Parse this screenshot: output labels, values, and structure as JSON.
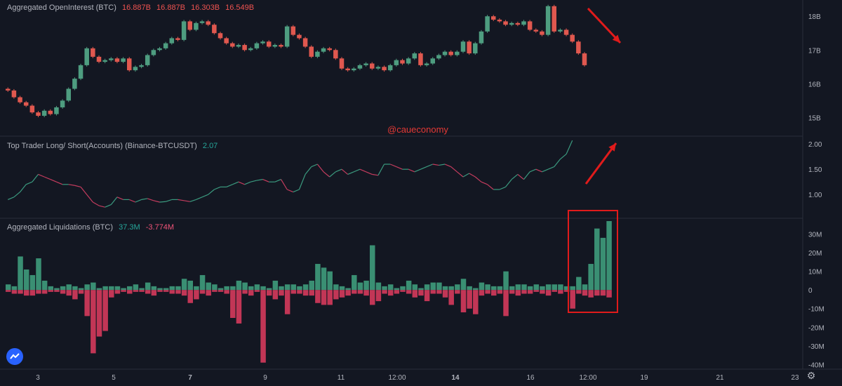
{
  "colors": {
    "background": "#131722",
    "up": "#4e9d80",
    "down": "#e0584f",
    "line_up": "#3b9a7f",
    "line_down": "#c43c5e",
    "liq_long": "#3a8f73",
    "liq_short": "#c23656",
    "annotation": "#e01b1b",
    "grid": "#2a2e39",
    "text": "#b2b5be"
  },
  "watermark": "@caueconomy",
  "logo_icon": "tradingview-cloud-icon",
  "settings_icon": "gear-icon",
  "chart_data": [
    {
      "type": "candlestick",
      "title": "Aggregated OpenInterest (BTC)",
      "legend_values": [
        "16.887B",
        "16.887B",
        "16.303B",
        "16.549B"
      ],
      "y_ticks": [
        "18B",
        "17B",
        "16B",
        "15B"
      ],
      "y_tick_values": [
        18,
        17,
        16,
        15
      ],
      "ylim": [
        14.55,
        18.4
      ],
      "x_ticks": [
        "3",
        "5",
        "7",
        "9",
        "11",
        "12:00",
        "14",
        "16",
        "12:00",
        "19",
        "21",
        "23"
      ],
      "x_tick_bold": [
        false,
        false,
        true,
        false,
        false,
        false,
        true,
        false,
        false,
        false,
        false,
        false
      ],
      "values": [
        15.8,
        15.6,
        15.45,
        15.35,
        15.15,
        15.05,
        15.2,
        15.1,
        15.3,
        15.5,
        15.85,
        16.15,
        16.55,
        17.05,
        16.8,
        16.65,
        16.7,
        16.75,
        16.65,
        16.75,
        16.4,
        16.5,
        16.55,
        16.85,
        17.0,
        17.05,
        17.2,
        17.35,
        17.3,
        17.85,
        17.6,
        17.8,
        17.85,
        17.75,
        17.5,
        17.35,
        17.2,
        17.1,
        17.15,
        17.0,
        17.05,
        17.2,
        17.25,
        17.1,
        17.15,
        17.1,
        17.7,
        17.45,
        17.35,
        17.1,
        16.8,
        16.95,
        17.05,
        17.0,
        16.75,
        16.45,
        16.4,
        16.45,
        16.55,
        16.6,
        16.45,
        16.5,
        16.4,
        16.55,
        16.7,
        16.6,
        16.75,
        16.9,
        16.55,
        16.6,
        16.75,
        16.85,
        16.95,
        16.85,
        16.95,
        17.25,
        16.9,
        17.2,
        17.55,
        18.0,
        17.9,
        17.85,
        17.75,
        17.8,
        17.75,
        17.85,
        17.6,
        17.55,
        17.45,
        18.3,
        17.55,
        17.6,
        17.45,
        17.25,
        16.9,
        16.55
      ]
    },
    {
      "type": "line",
      "title": "Top Trader Long/ Short(Accounts) (Binance-BTCUSDT)",
      "legend_values": [
        "2.07"
      ],
      "y_ticks": [
        "2.00",
        "1.50",
        "1.00"
      ],
      "y_tick_values": [
        2.0,
        1.5,
        1.0
      ],
      "ylim": [
        0.6,
        2.1
      ],
      "values": [
        0.9,
        0.95,
        1.05,
        1.2,
        1.25,
        1.4,
        1.35,
        1.3,
        1.25,
        1.2,
        1.2,
        1.18,
        1.15,
        1.0,
        0.85,
        0.78,
        0.75,
        0.8,
        0.95,
        0.9,
        0.9,
        0.85,
        0.9,
        0.92,
        0.88,
        0.85,
        0.86,
        0.9,
        0.9,
        0.88,
        0.86,
        0.9,
        0.95,
        1.0,
        1.1,
        1.15,
        1.15,
        1.2,
        1.25,
        1.2,
        1.25,
        1.28,
        1.3,
        1.25,
        1.25,
        1.3,
        1.1,
        1.05,
        1.1,
        1.4,
        1.55,
        1.6,
        1.45,
        1.35,
        1.45,
        1.5,
        1.4,
        1.45,
        1.5,
        1.45,
        1.4,
        1.38,
        1.6,
        1.6,
        1.55,
        1.5,
        1.5,
        1.45,
        1.5,
        1.55,
        1.6,
        1.58,
        1.6,
        1.55,
        1.45,
        1.35,
        1.42,
        1.35,
        1.25,
        1.2,
        1.1,
        1.1,
        1.15,
        1.3,
        1.4,
        1.3,
        1.45,
        1.5,
        1.45,
        1.5,
        1.55,
        1.7,
        1.8,
        2.07
      ]
    },
    {
      "type": "bar",
      "title": "Aggregated Liquidations (BTC)",
      "legend_values": [
        "37.3M",
        "-3.774M"
      ],
      "y_ticks": [
        "30M",
        "20M",
        "10M",
        "0",
        "-10M",
        "-20M",
        "-30M",
        "-40M"
      ],
      "y_tick_values": [
        30,
        20,
        10,
        0,
        -10,
        -20,
        -30,
        -40
      ],
      "ylim": [
        -41,
        37
      ],
      "series": [
        {
          "name": "long",
          "values": [
            3,
            2,
            18,
            11,
            8,
            17,
            5,
            2,
            1,
            2,
            3,
            2,
            1,
            3,
            4,
            1,
            2,
            2,
            2,
            1,
            2,
            3,
            1,
            4,
            2,
            1,
            1,
            2,
            2,
            6,
            5,
            2,
            8,
            4,
            3,
            1,
            2,
            2,
            5,
            4,
            2,
            3,
            2,
            1,
            5,
            2,
            3,
            3,
            2,
            3,
            5,
            14,
            12,
            10,
            3,
            2,
            1,
            8,
            4,
            5,
            24,
            4,
            2,
            3,
            1,
            2,
            5,
            3,
            1,
            3,
            4,
            4,
            2,
            2,
            3,
            6,
            2,
            1,
            4,
            3,
            2,
            2,
            10,
            2,
            3,
            3,
            2,
            3,
            2,
            3,
            3,
            3,
            2,
            2,
            7,
            3,
            14,
            33,
            28,
            37
          ]
        },
        {
          "name": "short",
          "values": [
            -1,
            -2,
            -2,
            -3,
            -3,
            -2,
            -2,
            -1,
            -1,
            -2,
            -3,
            -5,
            -2,
            -14,
            -34,
            -25,
            -22,
            -4,
            -2,
            -1,
            -2,
            -1,
            -1,
            -2,
            -3,
            -1,
            -1,
            -2,
            -2,
            -3,
            -7,
            -5,
            -2,
            -3,
            -1,
            -1,
            -2,
            -15,
            -18,
            -2,
            -3,
            -1,
            -39,
            -3,
            -5,
            -3,
            -13,
            -2,
            -2,
            -3,
            -3,
            -7,
            -8,
            -8,
            -5,
            -4,
            -3,
            -2,
            -2,
            -3,
            -8,
            -6,
            -2,
            -3,
            -2,
            -1,
            -2,
            -4,
            -3,
            -6,
            -2,
            -2,
            -4,
            -8,
            -2,
            -12,
            -10,
            -13,
            -3,
            -2,
            -3,
            -2,
            -14,
            -2,
            -3,
            -2,
            -2,
            -1,
            -2,
            -3,
            -1,
            -2,
            -1,
            -10,
            -2,
            -3,
            -4,
            -3,
            -3,
            -4
          ]
        }
      ]
    }
  ]
}
